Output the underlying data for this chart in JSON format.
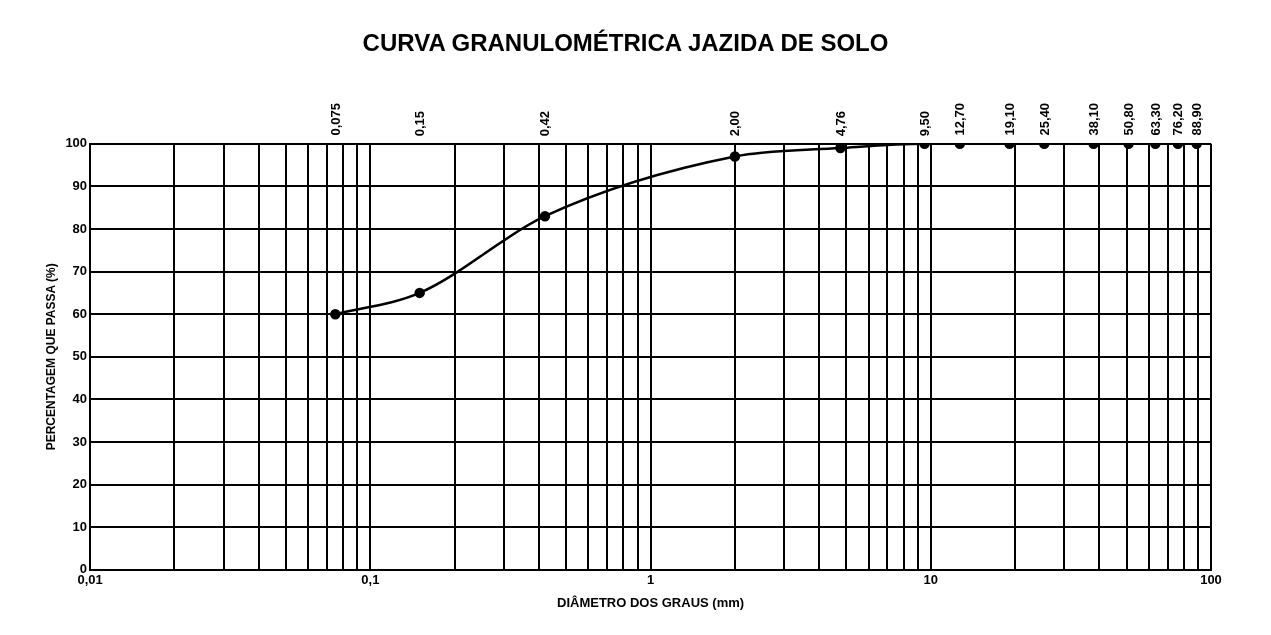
{
  "chart_data": {
    "type": "line",
    "title": "CURVA GRANULOMÉTRICA JAZIDA DE SOLO",
    "xlabel": "DIÂMETRO DOS GRAUS (mm)",
    "ylabel": "PERCENTAGEM QUE PASSA (%)",
    "log": "x",
    "grid": true,
    "legend": false,
    "marker": "circle",
    "line_style": "solid",
    "x": [
      0.075,
      0.15,
      0.42,
      2.0,
      4.76,
      9.5,
      12.7,
      19.1,
      25.4,
      38.1,
      50.8,
      63.3,
      76.2,
      88.9
    ],
    "series": [
      {
        "color": "#000000",
        "values": [
          60,
          65,
          83,
          97,
          99,
          100,
          100,
          100,
          100,
          100,
          100,
          100,
          100,
          100
        ]
      }
    ],
    "xlim": [
      0.01,
      100
    ],
    "xticks": [
      {
        "value": 0.01,
        "label": "0,01"
      },
      {
        "value": 0.02,
        "label": null
      },
      {
        "value": 0.03,
        "label": null
      },
      {
        "value": 0.04,
        "label": null
      },
      {
        "value": 0.05,
        "label": null
      },
      {
        "value": 0.06,
        "label": null
      },
      {
        "value": 0.07,
        "label": null
      },
      {
        "value": 0.08,
        "label": null
      },
      {
        "value": 0.09,
        "label": null
      },
      {
        "value": 0.1,
        "label": "0,1"
      },
      {
        "value": 0.2,
        "label": null
      },
      {
        "value": 0.3,
        "label": null
      },
      {
        "value": 0.4,
        "label": null
      },
      {
        "value": 0.5,
        "label": null
      },
      {
        "value": 0.6,
        "label": null
      },
      {
        "value": 0.7,
        "label": null
      },
      {
        "value": 0.8,
        "label": null
      },
      {
        "value": 0.9,
        "label": null
      },
      {
        "value": 1,
        "label": "1"
      },
      {
        "value": 2,
        "label": null
      },
      {
        "value": 3,
        "label": null
      },
      {
        "value": 4,
        "label": null
      },
      {
        "value": 5,
        "label": null
      },
      {
        "value": 6,
        "label": null
      },
      {
        "value": 7,
        "label": null
      },
      {
        "value": 8,
        "label": null
      },
      {
        "value": 9,
        "label": null
      },
      {
        "value": 10,
        "label": "10"
      },
      {
        "value": 20,
        "label": null
      },
      {
        "value": 30,
        "label": null
      },
      {
        "value": 40,
        "label": null
      },
      {
        "value": 50,
        "label": null
      },
      {
        "value": 60,
        "label": null
      },
      {
        "value": 70,
        "label": null
      },
      {
        "value": 80,
        "label": null
      },
      {
        "value": 90,
        "label": null
      },
      {
        "value": 100,
        "label": "100"
      }
    ],
    "annotations": [
      "0,075",
      "0,15",
      "0,42",
      "2,00",
      "4,76",
      "9,50",
      "12,70",
      "19,10",
      "25,40",
      "38,10",
      "50,80",
      "63,30",
      "76,20",
      "88,90"
    ],
    "ylim": [
      0,
      100
    ],
    "yticks": [
      0,
      10,
      20,
      30,
      40,
      50,
      60,
      70,
      80,
      90,
      100
    ]
  }
}
